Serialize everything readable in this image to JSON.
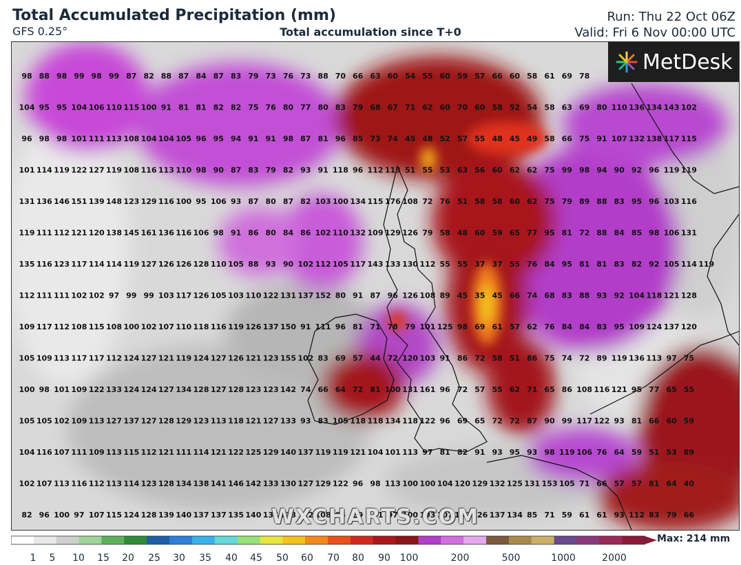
{
  "header": {
    "title": "Total Accumulated Precipitation (mm)",
    "model": "GFS 0.25°",
    "subtitle": "Total accumulation since T+0",
    "run": "Run: Thu 22 Oct 06Z",
    "valid": "Valid: Fri 6 Nov 00:00 UTC"
  },
  "logo": {
    "text": "MetDesk",
    "icon": "starburst-icon"
  },
  "watermark": "WXCHARTS.COM",
  "colorbar": {
    "ticks": [
      "1",
      "5",
      "10",
      "15",
      "20",
      "25",
      "30",
      "35",
      "40",
      "45",
      "50",
      "60",
      "70",
      "80",
      "90",
      "100",
      "200",
      "500",
      "1000",
      "2000"
    ],
    "max_label": "Max: 214 mm"
  },
  "grid_values": [
    [
      "98",
      "88",
      "98",
      "99",
      "98",
      "99",
      "87",
      "82",
      "88",
      "87",
      "84",
      "87",
      "83",
      "79",
      "73",
      "76",
      "73",
      "88",
      "70",
      "66",
      "63",
      "60",
      "54",
      "55",
      "60",
      "59",
      "57",
      "66",
      "60",
      "58",
      "61",
      "69",
      "78"
    ],
    [
      "104",
      "95",
      "95",
      "104",
      "106",
      "110",
      "115",
      "100",
      "91",
      "81",
      "81",
      "82",
      "82",
      "75",
      "76",
      "80",
      "77",
      "80",
      "83",
      "79",
      "68",
      "67",
      "71",
      "62",
      "60",
      "70",
      "60",
      "58",
      "52",
      "54",
      "58",
      "63",
      "69",
      "80",
      "110",
      "136",
      "134",
      "143",
      "102"
    ],
    [
      "96",
      "98",
      "98",
      "101",
      "111",
      "113",
      "108",
      "104",
      "104",
      "105",
      "96",
      "95",
      "94",
      "91",
      "91",
      "98",
      "87",
      "81",
      "96",
      "85",
      "73",
      "74",
      "45",
      "48",
      "52",
      "57",
      "55",
      "48",
      "45",
      "49",
      "58",
      "66",
      "75",
      "91",
      "107",
      "132",
      "138",
      "117",
      "115"
    ],
    [
      "101",
      "114",
      "119",
      "122",
      "127",
      "119",
      "108",
      "116",
      "113",
      "110",
      "98",
      "90",
      "87",
      "83",
      "79",
      "82",
      "93",
      "91",
      "118",
      "96",
      "112",
      "113",
      "51",
      "55",
      "53",
      "63",
      "56",
      "60",
      "62",
      "62",
      "75",
      "99",
      "98",
      "94",
      "90",
      "92",
      "96",
      "119",
      "119"
    ],
    [
      "131",
      "136",
      "146",
      "151",
      "139",
      "148",
      "123",
      "129",
      "116",
      "100",
      "95",
      "106",
      "93",
      "87",
      "80",
      "87",
      "82",
      "103",
      "100",
      "134",
      "115",
      "176",
      "108",
      "72",
      "76",
      "51",
      "58",
      "58",
      "60",
      "62",
      "75",
      "79",
      "89",
      "88",
      "83",
      "95",
      "96",
      "103",
      "116"
    ],
    [
      "119",
      "111",
      "112",
      "121",
      "120",
      "138",
      "145",
      "161",
      "136",
      "116",
      "106",
      "98",
      "91",
      "86",
      "80",
      "84",
      "86",
      "102",
      "110",
      "132",
      "109",
      "129",
      "126",
      "79",
      "58",
      "48",
      "60",
      "59",
      "65",
      "77",
      "95",
      "81",
      "72",
      "88",
      "84",
      "85",
      "98",
      "106",
      "131"
    ],
    [
      "135",
      "116",
      "123",
      "117",
      "114",
      "114",
      "119",
      "127",
      "126",
      "126",
      "128",
      "110",
      "105",
      "88",
      "93",
      "90",
      "102",
      "112",
      "105",
      "117",
      "143",
      "133",
      "130",
      "112",
      "55",
      "55",
      "37",
      "37",
      "55",
      "76",
      "84",
      "95",
      "81",
      "81",
      "83",
      "82",
      "92",
      "105",
      "114",
      "119"
    ],
    [
      "112",
      "111",
      "111",
      "102",
      "102",
      "97",
      "99",
      "99",
      "103",
      "117",
      "126",
      "105",
      "103",
      "110",
      "122",
      "131",
      "137",
      "152",
      "80",
      "91",
      "87",
      "96",
      "126",
      "108",
      "89",
      "45",
      "35",
      "45",
      "66",
      "74",
      "68",
      "83",
      "88",
      "93",
      "92",
      "104",
      "118",
      "121",
      "128"
    ],
    [
      "109",
      "117",
      "112",
      "108",
      "115",
      "108",
      "100",
      "102",
      "107",
      "110",
      "118",
      "116",
      "119",
      "126",
      "137",
      "150",
      "91",
      "111",
      "96",
      "81",
      "71",
      "78",
      "79",
      "101",
      "125",
      "98",
      "69",
      "61",
      "57",
      "62",
      "76",
      "84",
      "84",
      "83",
      "95",
      "109",
      "124",
      "137",
      "120"
    ],
    [
      "105",
      "109",
      "113",
      "117",
      "117",
      "112",
      "124",
      "127",
      "121",
      "119",
      "124",
      "127",
      "126",
      "121",
      "123",
      "155",
      "102",
      "83",
      "69",
      "57",
      "44",
      "72",
      "120",
      "103",
      "91",
      "86",
      "72",
      "58",
      "51",
      "86",
      "75",
      "74",
      "72",
      "89",
      "119",
      "136",
      "113",
      "97",
      "75"
    ],
    [
      "100",
      "98",
      "101",
      "109",
      "122",
      "133",
      "124",
      "124",
      "127",
      "134",
      "128",
      "127",
      "128",
      "123",
      "123",
      "142",
      "74",
      "66",
      "64",
      "72",
      "81",
      "100",
      "131",
      "161",
      "96",
      "72",
      "57",
      "55",
      "62",
      "71",
      "65",
      "86",
      "108",
      "116",
      "121",
      "95",
      "77",
      "65",
      "55"
    ],
    [
      "105",
      "105",
      "102",
      "109",
      "113",
      "127",
      "137",
      "127",
      "128",
      "129",
      "123",
      "113",
      "118",
      "121",
      "127",
      "133",
      "93",
      "83",
      "105",
      "118",
      "118",
      "134",
      "118",
      "122",
      "96",
      "69",
      "65",
      "72",
      "72",
      "87",
      "90",
      "99",
      "117",
      "122",
      "93",
      "81",
      "66",
      "60",
      "59"
    ],
    [
      "104",
      "116",
      "107",
      "111",
      "109",
      "113",
      "115",
      "112",
      "121",
      "111",
      "114",
      "121",
      "122",
      "125",
      "129",
      "140",
      "137",
      "119",
      "119",
      "121",
      "104",
      "101",
      "113",
      "97",
      "81",
      "82",
      "91",
      "93",
      "95",
      "93",
      "98",
      "119",
      "106",
      "76",
      "64",
      "59",
      "51",
      "53",
      "89"
    ],
    [
      "102",
      "107",
      "113",
      "116",
      "112",
      "113",
      "114",
      "123",
      "128",
      "134",
      "138",
      "141",
      "146",
      "142",
      "133",
      "130",
      "127",
      "129",
      "122",
      "96",
      "98",
      "113",
      "100",
      "100",
      "104",
      "120",
      "129",
      "132",
      "125",
      "131",
      "153",
      "105",
      "71",
      "66",
      "57",
      "57",
      "81",
      "64",
      "40"
    ],
    [
      "82",
      "96",
      "100",
      "97",
      "107",
      "115",
      "124",
      "128",
      "139",
      "140",
      "137",
      "137",
      "135",
      "140",
      "134",
      "133",
      "122",
      "108",
      "95",
      "89",
      "101",
      "97",
      "100",
      "103",
      "107",
      "139",
      "126",
      "137",
      "134",
      "85",
      "71",
      "59",
      "61",
      "61",
      "93",
      "112",
      "83",
      "79",
      "66"
    ]
  ]
}
